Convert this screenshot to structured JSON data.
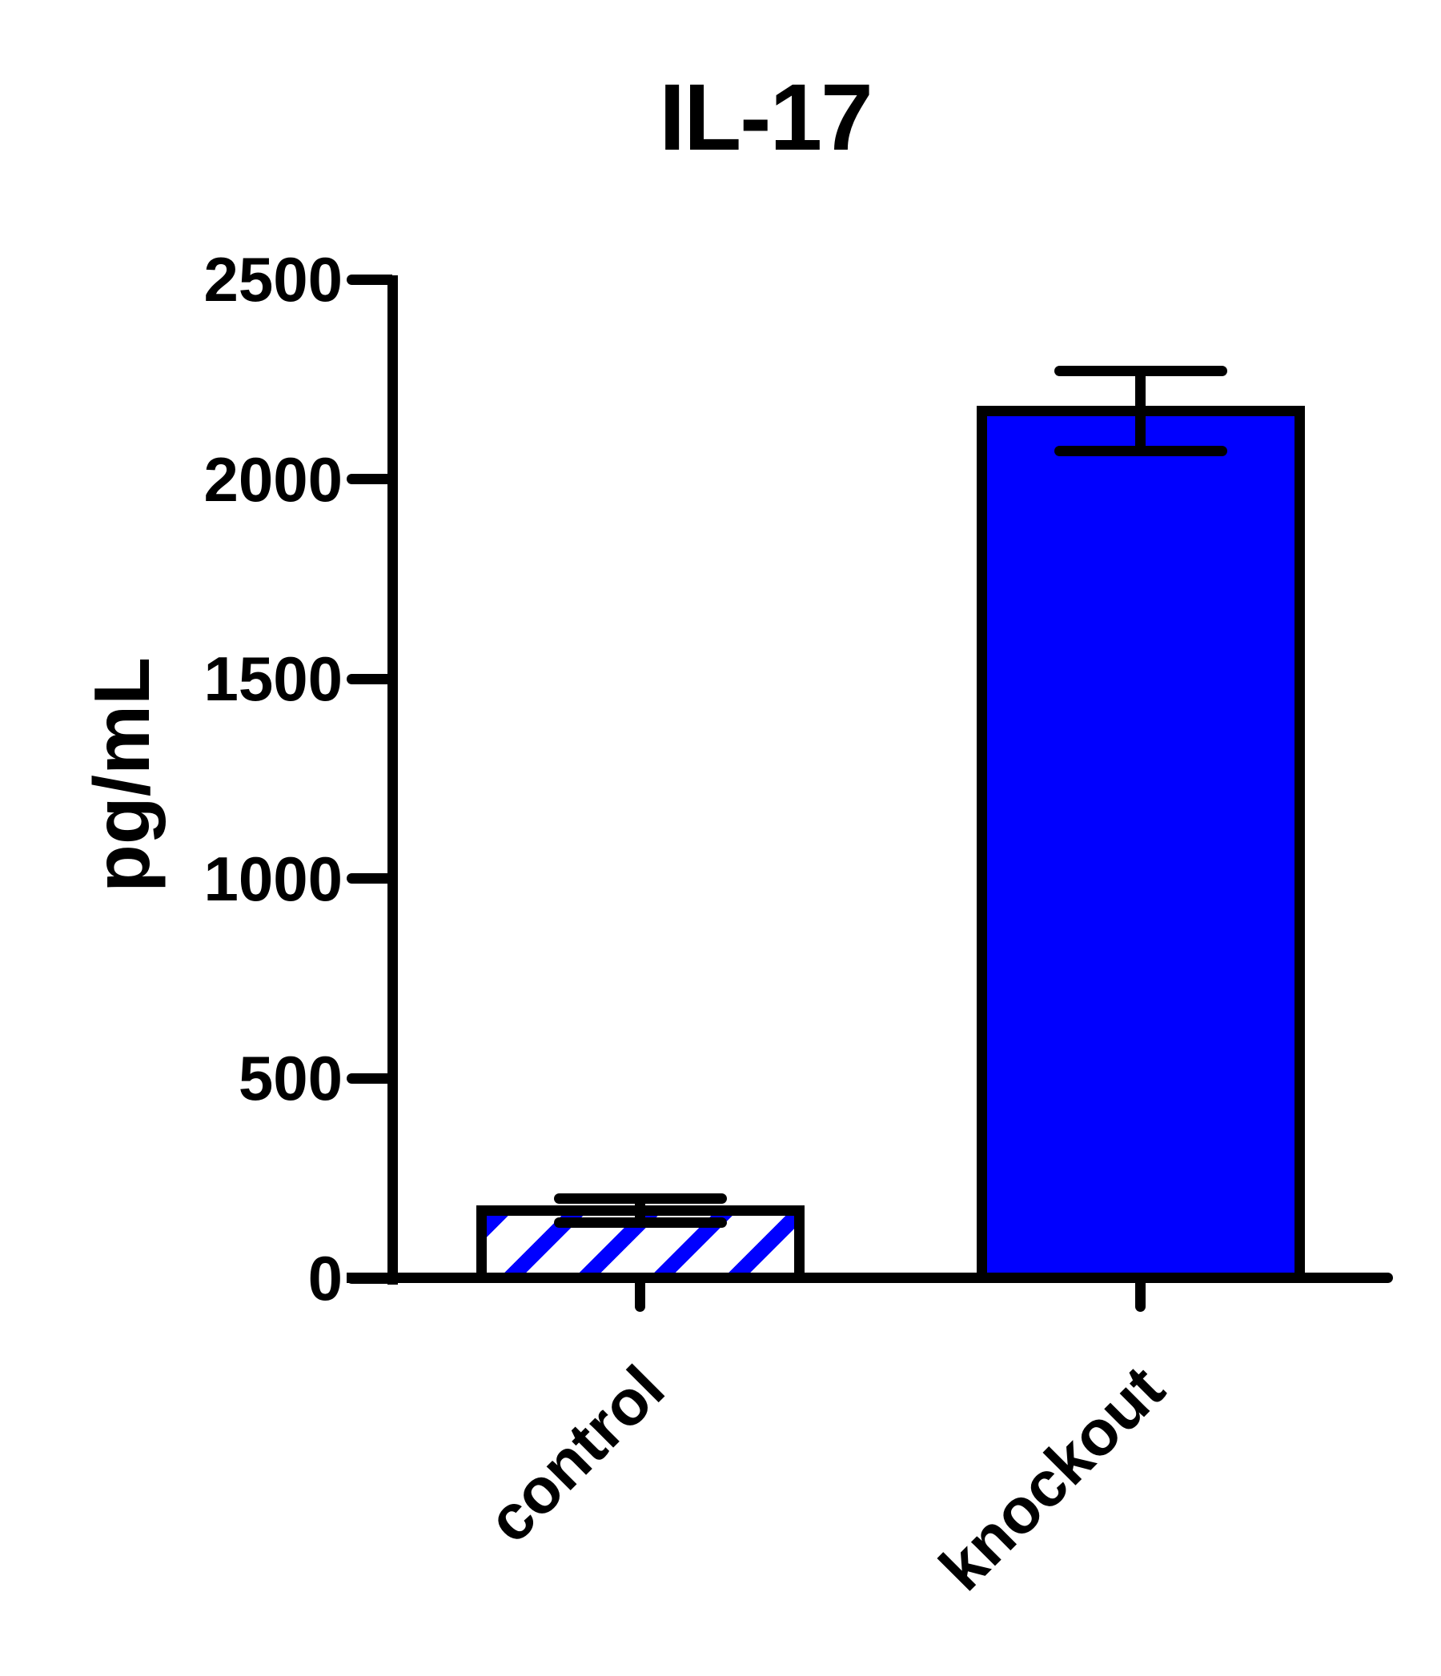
{
  "chart_data": {
    "type": "bar",
    "title": "IL-17",
    "ylabel": "pg/mL",
    "xlabel": "",
    "categories": [
      "control",
      "knockout"
    ],
    "values": [
      170,
      2170
    ],
    "error_bars": [
      30,
      100
    ],
    "error_bar_style": "symmetric-caps",
    "ylim": [
      0,
      2500
    ],
    "yticks": [
      0,
      500,
      1000,
      1500,
      2000,
      2500
    ],
    "ytick_labels": [
      "0",
      "500",
      "1000",
      "1500",
      "2000",
      "2500"
    ],
    "grid": false,
    "legend": "none",
    "bar_fill": [
      "white-with-blue-diagonal-hatch",
      "solid-blue"
    ],
    "colors": {
      "bar_blue": "#0000ff",
      "axis_black": "#000000",
      "background": "#ffffff"
    }
  }
}
